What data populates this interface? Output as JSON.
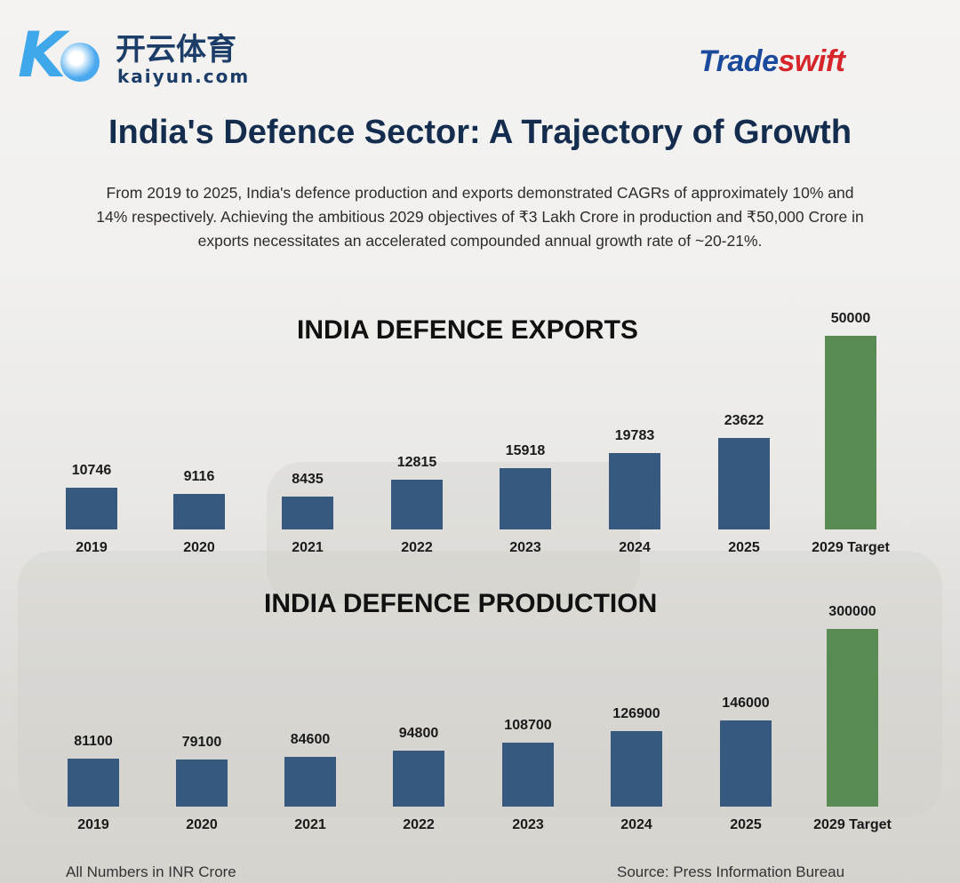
{
  "logo": {
    "part1": "Trade",
    "part2": "swift"
  },
  "title": "India's Defence Sector: A Trajectory of Growth",
  "description": "From 2019 to 2025, India's defence production and exports demonstrated CAGRs of approximately 10% and 14% respectively. Achieving the ambitious 2029 objectives of ₹3 Lakh Crore in production and ₹50,000 Crore in exports necessitates an accelerated compounded annual growth rate of ~20-21%.",
  "chart_data": [
    {
      "type": "bar",
      "title": "INDIA DEFENCE EXPORTS",
      "categories": [
        "2019",
        "2020",
        "2021",
        "2022",
        "2023",
        "2024",
        "2025",
        "2029 Target"
      ],
      "values": [
        10746,
        9116,
        8435,
        12815,
        15918,
        19783,
        23622,
        50000
      ],
      "colors": [
        "#38597f",
        "#38597f",
        "#38597f",
        "#38597f",
        "#38597f",
        "#38597f",
        "#38597f",
        "#5a8b55"
      ],
      "ylim": [
        0,
        50000
      ],
      "grid": false,
      "data_labels": true
    },
    {
      "type": "bar",
      "title": "INDIA DEFENCE PRODUCTION",
      "categories": [
        "2019",
        "2020",
        "2021",
        "2022",
        "2023",
        "2024",
        "2025",
        "2029 Target"
      ],
      "values": [
        81100,
        79100,
        84600,
        94800,
        108700,
        126900,
        146000,
        300000
      ],
      "colors": [
        "#38597f",
        "#38597f",
        "#38597f",
        "#38597f",
        "#38597f",
        "#38597f",
        "#38597f",
        "#5a8b55"
      ],
      "ylim": [
        0,
        300000
      ],
      "grid": false,
      "data_labels": true
    }
  ],
  "footer": {
    "units": "All Numbers in INR Crore",
    "source": "Source: Press Information Bureau"
  },
  "watermark": {
    "cn": "开云体育",
    "en": "kaiyun.com"
  }
}
